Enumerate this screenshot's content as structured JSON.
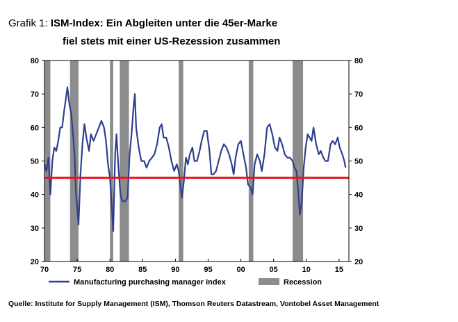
{
  "header": {
    "prefix": "Grafik 1:",
    "title_line1": "ISM-Index: Ein Abgleiten unter die 45er-Marke",
    "title_line2": "fiel stets mit einer US-Rezession zusammen"
  },
  "footer": {
    "source_label": "Quelle:",
    "source_text": "Institute for Supply Management (ISM), Thomson Reuters Datastream, Vontobel Asset Management"
  },
  "chart_data": {
    "type": "line",
    "xlim": [
      1970,
      2016.5
    ],
    "ylim": [
      20,
      80
    ],
    "x_ticks": [
      1970,
      1975,
      1980,
      1985,
      1990,
      1995,
      2000,
      2005,
      2010,
      2015
    ],
    "x_tick_labels": [
      "70",
      "75",
      "80",
      "85",
      "90",
      "95",
      "00",
      "05",
      "10",
      "15"
    ],
    "y_ticks": [
      20,
      30,
      40,
      50,
      60,
      70,
      80
    ],
    "y_tick_labels": [
      "20",
      "30",
      "40",
      "50",
      "60",
      "70",
      "80"
    ],
    "grid": false,
    "legend_position": "bottom",
    "colors": {
      "line": "#2e3f8f",
      "threshold": "#e8141c",
      "recession": "#8c8c8c"
    },
    "threshold": 45,
    "recessions": [
      [
        1970.0,
        1970.9
      ],
      [
        1973.9,
        1975.2
      ],
      [
        1980.0,
        1980.5
      ],
      [
        1981.5,
        1982.9
      ],
      [
        1990.5,
        1991.2
      ],
      [
        2001.2,
        2001.9
      ],
      [
        2007.9,
        2009.5
      ]
    ],
    "series": [
      {
        "name": "Manufacturing purchasing manager index",
        "points": [
          [
            1970.0,
            49
          ],
          [
            1970.3,
            47
          ],
          [
            1970.6,
            51
          ],
          [
            1970.9,
            40
          ],
          [
            1971.2,
            50
          ],
          [
            1971.5,
            54
          ],
          [
            1971.8,
            53
          ],
          [
            1972.1,
            56
          ],
          [
            1972.4,
            60
          ],
          [
            1972.7,
            60
          ],
          [
            1973.0,
            65
          ],
          [
            1973.3,
            69
          ],
          [
            1973.5,
            72
          ],
          [
            1973.8,
            67
          ],
          [
            1974.1,
            64
          ],
          [
            1974.4,
            57
          ],
          [
            1974.6,
            52
          ],
          [
            1974.8,
            41
          ],
          [
            1975.0,
            36
          ],
          [
            1975.2,
            31
          ],
          [
            1975.5,
            46
          ],
          [
            1975.8,
            55
          ],
          [
            1976.1,
            61
          ],
          [
            1976.4,
            57
          ],
          [
            1976.8,
            53
          ],
          [
            1977.1,
            58
          ],
          [
            1977.5,
            56
          ],
          [
            1977.9,
            58
          ],
          [
            1978.3,
            60
          ],
          [
            1978.7,
            62
          ],
          [
            1979.1,
            60
          ],
          [
            1979.4,
            56
          ],
          [
            1979.7,
            49
          ],
          [
            1980.0,
            45
          ],
          [
            1980.3,
            36
          ],
          [
            1980.5,
            29
          ],
          [
            1980.8,
            52
          ],
          [
            1981.0,
            58
          ],
          [
            1981.3,
            48
          ],
          [
            1981.6,
            40
          ],
          [
            1981.9,
            38
          ],
          [
            1982.3,
            38
          ],
          [
            1982.7,
            39
          ],
          [
            1983.0,
            52
          ],
          [
            1983.3,
            58
          ],
          [
            1983.6,
            66
          ],
          [
            1983.8,
            70
          ],
          [
            1984.0,
            60
          ],
          [
            1984.4,
            54
          ],
          [
            1984.8,
            50
          ],
          [
            1985.2,
            50
          ],
          [
            1985.6,
            48
          ],
          [
            1986.0,
            50
          ],
          [
            1986.4,
            51
          ],
          [
            1986.8,
            52
          ],
          [
            1987.2,
            55
          ],
          [
            1987.6,
            60
          ],
          [
            1987.9,
            61
          ],
          [
            1988.2,
            57
          ],
          [
            1988.6,
            57
          ],
          [
            1989.0,
            54
          ],
          [
            1989.4,
            50
          ],
          [
            1989.8,
            47
          ],
          [
            1990.2,
            49
          ],
          [
            1990.5,
            47
          ],
          [
            1990.8,
            42
          ],
          [
            1991.0,
            39
          ],
          [
            1991.3,
            44
          ],
          [
            1991.6,
            51
          ],
          [
            1991.9,
            49
          ],
          [
            1992.2,
            52
          ],
          [
            1992.6,
            54
          ],
          [
            1992.9,
            50
          ],
          [
            1993.3,
            50
          ],
          [
            1993.7,
            53
          ],
          [
            1994.0,
            56
          ],
          [
            1994.4,
            59
          ],
          [
            1994.8,
            59
          ],
          [
            1995.2,
            53
          ],
          [
            1995.5,
            46
          ],
          [
            1995.8,
            46
          ],
          [
            1996.2,
            47
          ],
          [
            1996.6,
            50
          ],
          [
            1997.0,
            53
          ],
          [
            1997.4,
            55
          ],
          [
            1997.8,
            54
          ],
          [
            1998.2,
            52
          ],
          [
            1998.6,
            49
          ],
          [
            1998.9,
            46
          ],
          [
            1999.2,
            51
          ],
          [
            1999.6,
            55
          ],
          [
            2000.0,
            56
          ],
          [
            2000.4,
            52
          ],
          [
            2000.8,
            48
          ],
          [
            2001.1,
            43
          ],
          [
            2001.5,
            42
          ],
          [
            2001.8,
            40
          ],
          [
            2002.1,
            49
          ],
          [
            2002.5,
            52
          ],
          [
            2002.9,
            50
          ],
          [
            2003.2,
            47
          ],
          [
            2003.6,
            52
          ],
          [
            2004.0,
            60
          ],
          [
            2004.4,
            61
          ],
          [
            2004.8,
            58
          ],
          [
            2005.2,
            54
          ],
          [
            2005.6,
            53
          ],
          [
            2005.9,
            57
          ],
          [
            2006.3,
            55
          ],
          [
            2006.7,
            52
          ],
          [
            2007.1,
            51
          ],
          [
            2007.5,
            51
          ],
          [
            2007.9,
            50
          ],
          [
            2008.2,
            48
          ],
          [
            2008.5,
            47
          ],
          [
            2008.8,
            40
          ],
          [
            2009.0,
            34
          ],
          [
            2009.3,
            38
          ],
          [
            2009.6,
            48
          ],
          [
            2009.9,
            54
          ],
          [
            2010.2,
            58
          ],
          [
            2010.5,
            57
          ],
          [
            2010.8,
            56
          ],
          [
            2011.1,
            60
          ],
          [
            2011.5,
            55
          ],
          [
            2011.9,
            52
          ],
          [
            2012.2,
            53
          ],
          [
            2012.6,
            51
          ],
          [
            2012.9,
            50
          ],
          [
            2013.3,
            50
          ],
          [
            2013.7,
            55
          ],
          [
            2014.0,
            56
          ],
          [
            2014.4,
            55
          ],
          [
            2014.8,
            57
          ],
          [
            2015.1,
            54
          ],
          [
            2015.5,
            52
          ],
          [
            2015.8,
            50
          ],
          [
            2016.0,
            48
          ]
        ]
      }
    ],
    "legend": [
      {
        "label": "Manufacturing purchasing manager index",
        "kind": "line"
      },
      {
        "label": "Recession",
        "kind": "box"
      }
    ]
  }
}
